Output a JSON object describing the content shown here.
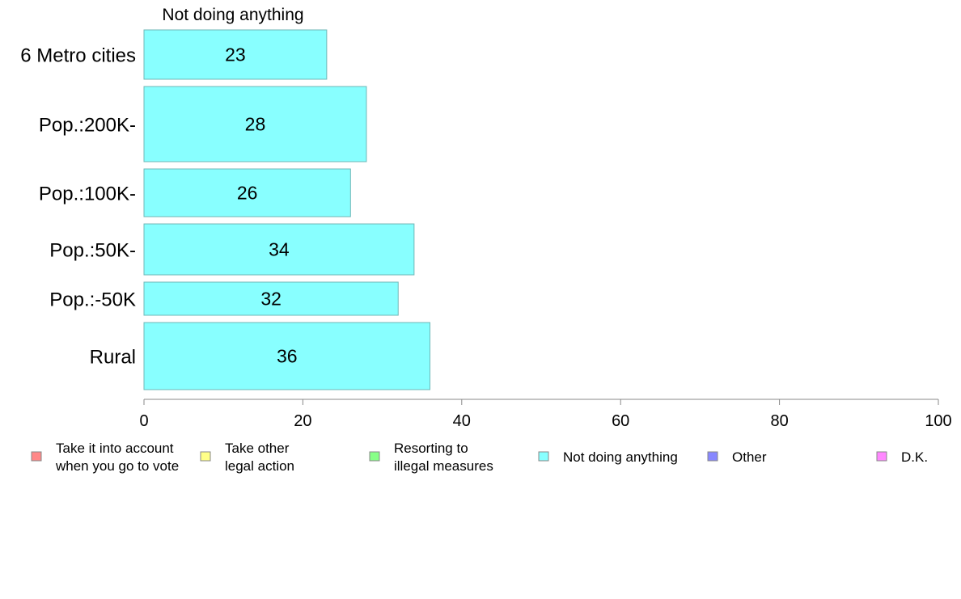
{
  "chart_data": {
    "type": "bar",
    "orientation": "horizontal",
    "title": "Not doing anything",
    "categories": [
      "6 Metro cities",
      "Pop.:200K-",
      "Pop.:100K-",
      "Pop.:50K-",
      "Pop.:-50K",
      "Rural"
    ],
    "series": [
      {
        "name": "Not doing anything",
        "values": [
          23,
          28,
          26,
          34,
          32,
          36
        ],
        "color": "#88ffff"
      }
    ],
    "data_labels": [
      "23",
      "28",
      "26",
      "34",
      "32",
      "36"
    ],
    "xlim": [
      0,
      100
    ],
    "x_ticks": [
      "0",
      "20",
      "40",
      "60",
      "80",
      "100"
    ],
    "grid": false,
    "legend_position": "bottom",
    "legend": [
      {
        "label_lines": [
          "Take it into account",
          "when you go to vote"
        ],
        "color": "#ff8888"
      },
      {
        "label_lines": [
          "Take other",
          "legal action"
        ],
        "color": "#ffff88"
      },
      {
        "label_lines": [
          "Resorting to",
          "illegal measures"
        ],
        "color": "#88ff88"
      },
      {
        "label_lines": [
          "Not doing anything"
        ],
        "color": "#88ffff"
      },
      {
        "label_lines": [
          "Other"
        ],
        "color": "#8888ff"
      },
      {
        "label_lines": [
          "D.K."
        ],
        "color": "#ff88ff"
      }
    ]
  }
}
